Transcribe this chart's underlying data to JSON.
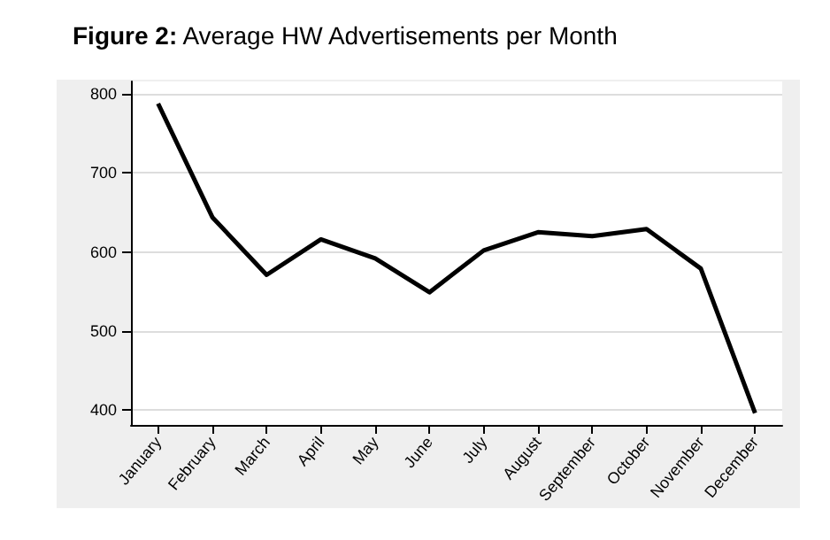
{
  "chart_data": {
    "type": "line",
    "title": "Figure 2: Average HW Advertisements per Month",
    "categories": [
      "January",
      "February",
      "March",
      "April",
      "May",
      "June",
      "July",
      "August",
      "September",
      "October",
      "November",
      "December"
    ],
    "series": [
      {
        "color": "#000000",
        "values": [
          788,
          644,
          571,
          616,
          592,
          549,
          602,
          625,
          620,
          629,
          579,
          396
        ]
      }
    ],
    "ylim": [
      381,
      816
    ],
    "yticks": [
      400,
      500,
      600,
      700,
      800
    ],
    "grid": "y",
    "marker": "none",
    "line_style": "solid"
  }
}
